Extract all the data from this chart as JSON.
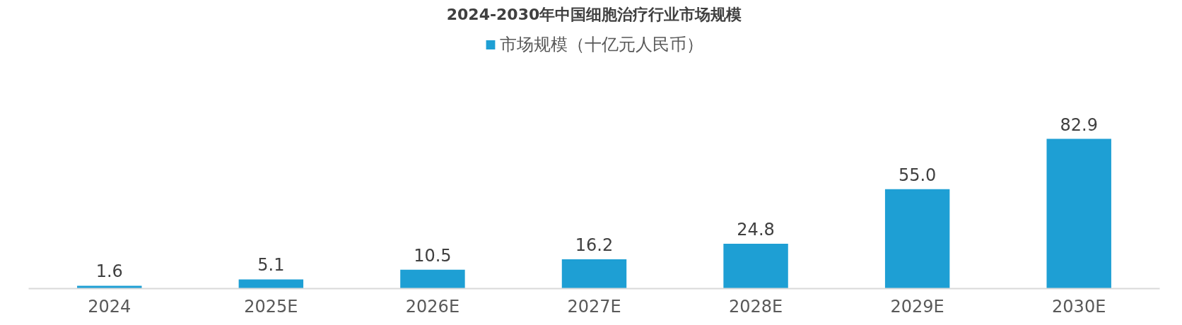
{
  "chart_data": {
    "type": "bar",
    "title": "2024-2030年中国细胞治疗行业市场规模",
    "categories": [
      "2024",
      "2025E",
      "2026E",
      "2027E",
      "2028E",
      "2029E",
      "2030E"
    ],
    "series": [
      {
        "name": "市场规模（十亿元人民币）",
        "color": "#1e9fd4",
        "values": [
          1.6,
          5.1,
          10.5,
          16.2,
          24.8,
          55.0,
          82.9
        ],
        "value_labels": [
          "1.6",
          "5.1",
          "10.5",
          "16.2",
          "24.8",
          "55.0",
          "82.9"
        ]
      }
    ],
    "legend": "top",
    "grid": false,
    "tick_labels": "x"
  }
}
